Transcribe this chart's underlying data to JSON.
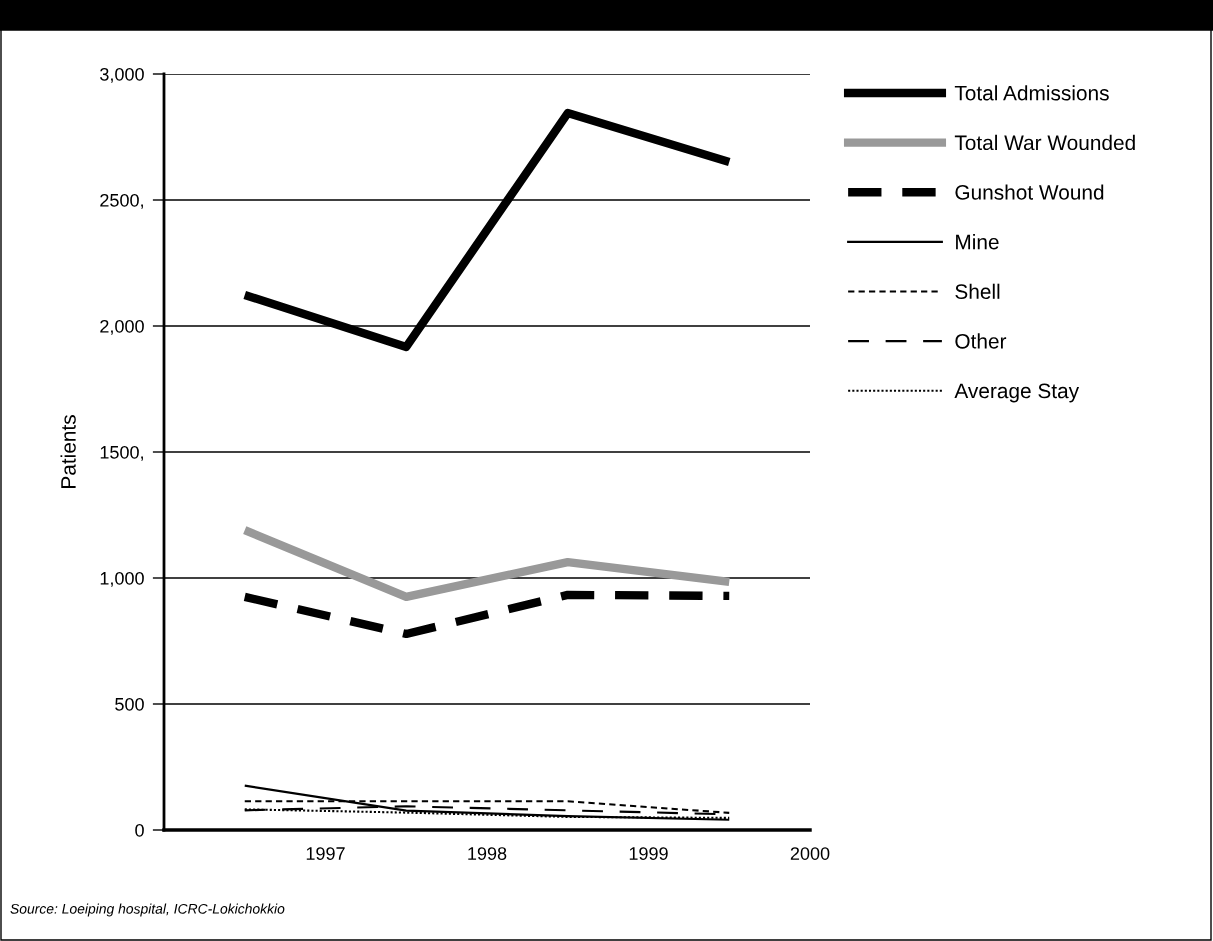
{
  "chart_data": {
    "type": "line",
    "ylabel": "Patients",
    "x": [
      1996.5,
      1997.5,
      1998.5,
      1999.5
    ],
    "xlim": [
      1996,
      2000
    ],
    "xticks": [
      1997,
      1998,
      1999,
      2000
    ],
    "ylim": [
      0,
      3000
    ],
    "yticks": [
      {
        "value": 0,
        "label": "0"
      },
      {
        "value": 500,
        "label": "500"
      },
      {
        "value": 1000,
        "label": "1,000"
      },
      {
        "value": 1500,
        "label": "1500,"
      },
      {
        "value": 2000,
        "label": "2,000"
      },
      {
        "value": 2500,
        "label": "2500,"
      },
      {
        "value": 3000,
        "label": "3,000"
      }
    ],
    "grid": "y",
    "legend": "right",
    "marker": "none",
    "series": [
      {
        "name": "Total Admissions",
        "color": "#000000",
        "line_style": "solid",
        "values": [
          2123,
          1917,
          2845,
          2651
        ]
      },
      {
        "name": "Total War Wounded",
        "color": "#999999",
        "line_style": "solid",
        "values": [
          1190,
          925,
          1063,
          985
        ]
      },
      {
        "name": "Gunshot Wound",
        "color": "#000000",
        "line_style": "dashed",
        "values": [
          925,
          778,
          933,
          929
        ]
      },
      {
        "name": "Mine",
        "color": "#000000",
        "line_style": "solid",
        "values": [
          176,
          77,
          55,
          41
        ]
      },
      {
        "name": "Shell",
        "color": "#000000",
        "line_style": "dashed",
        "values": [
          114,
          114,
          114,
          68
        ]
      },
      {
        "name": "Other",
        "color": "#000000",
        "line_style": "dashed",
        "values": [
          78,
          94,
          78,
          62
        ]
      },
      {
        "name": "Average Stay",
        "color": "#000000",
        "line_style": "dotted",
        "values": [
          82,
          69,
          52,
          48
        ]
      }
    ],
    "annotations": [
      "Source: Loeiping hospital, ICRC-Lokichokkio"
    ]
  }
}
